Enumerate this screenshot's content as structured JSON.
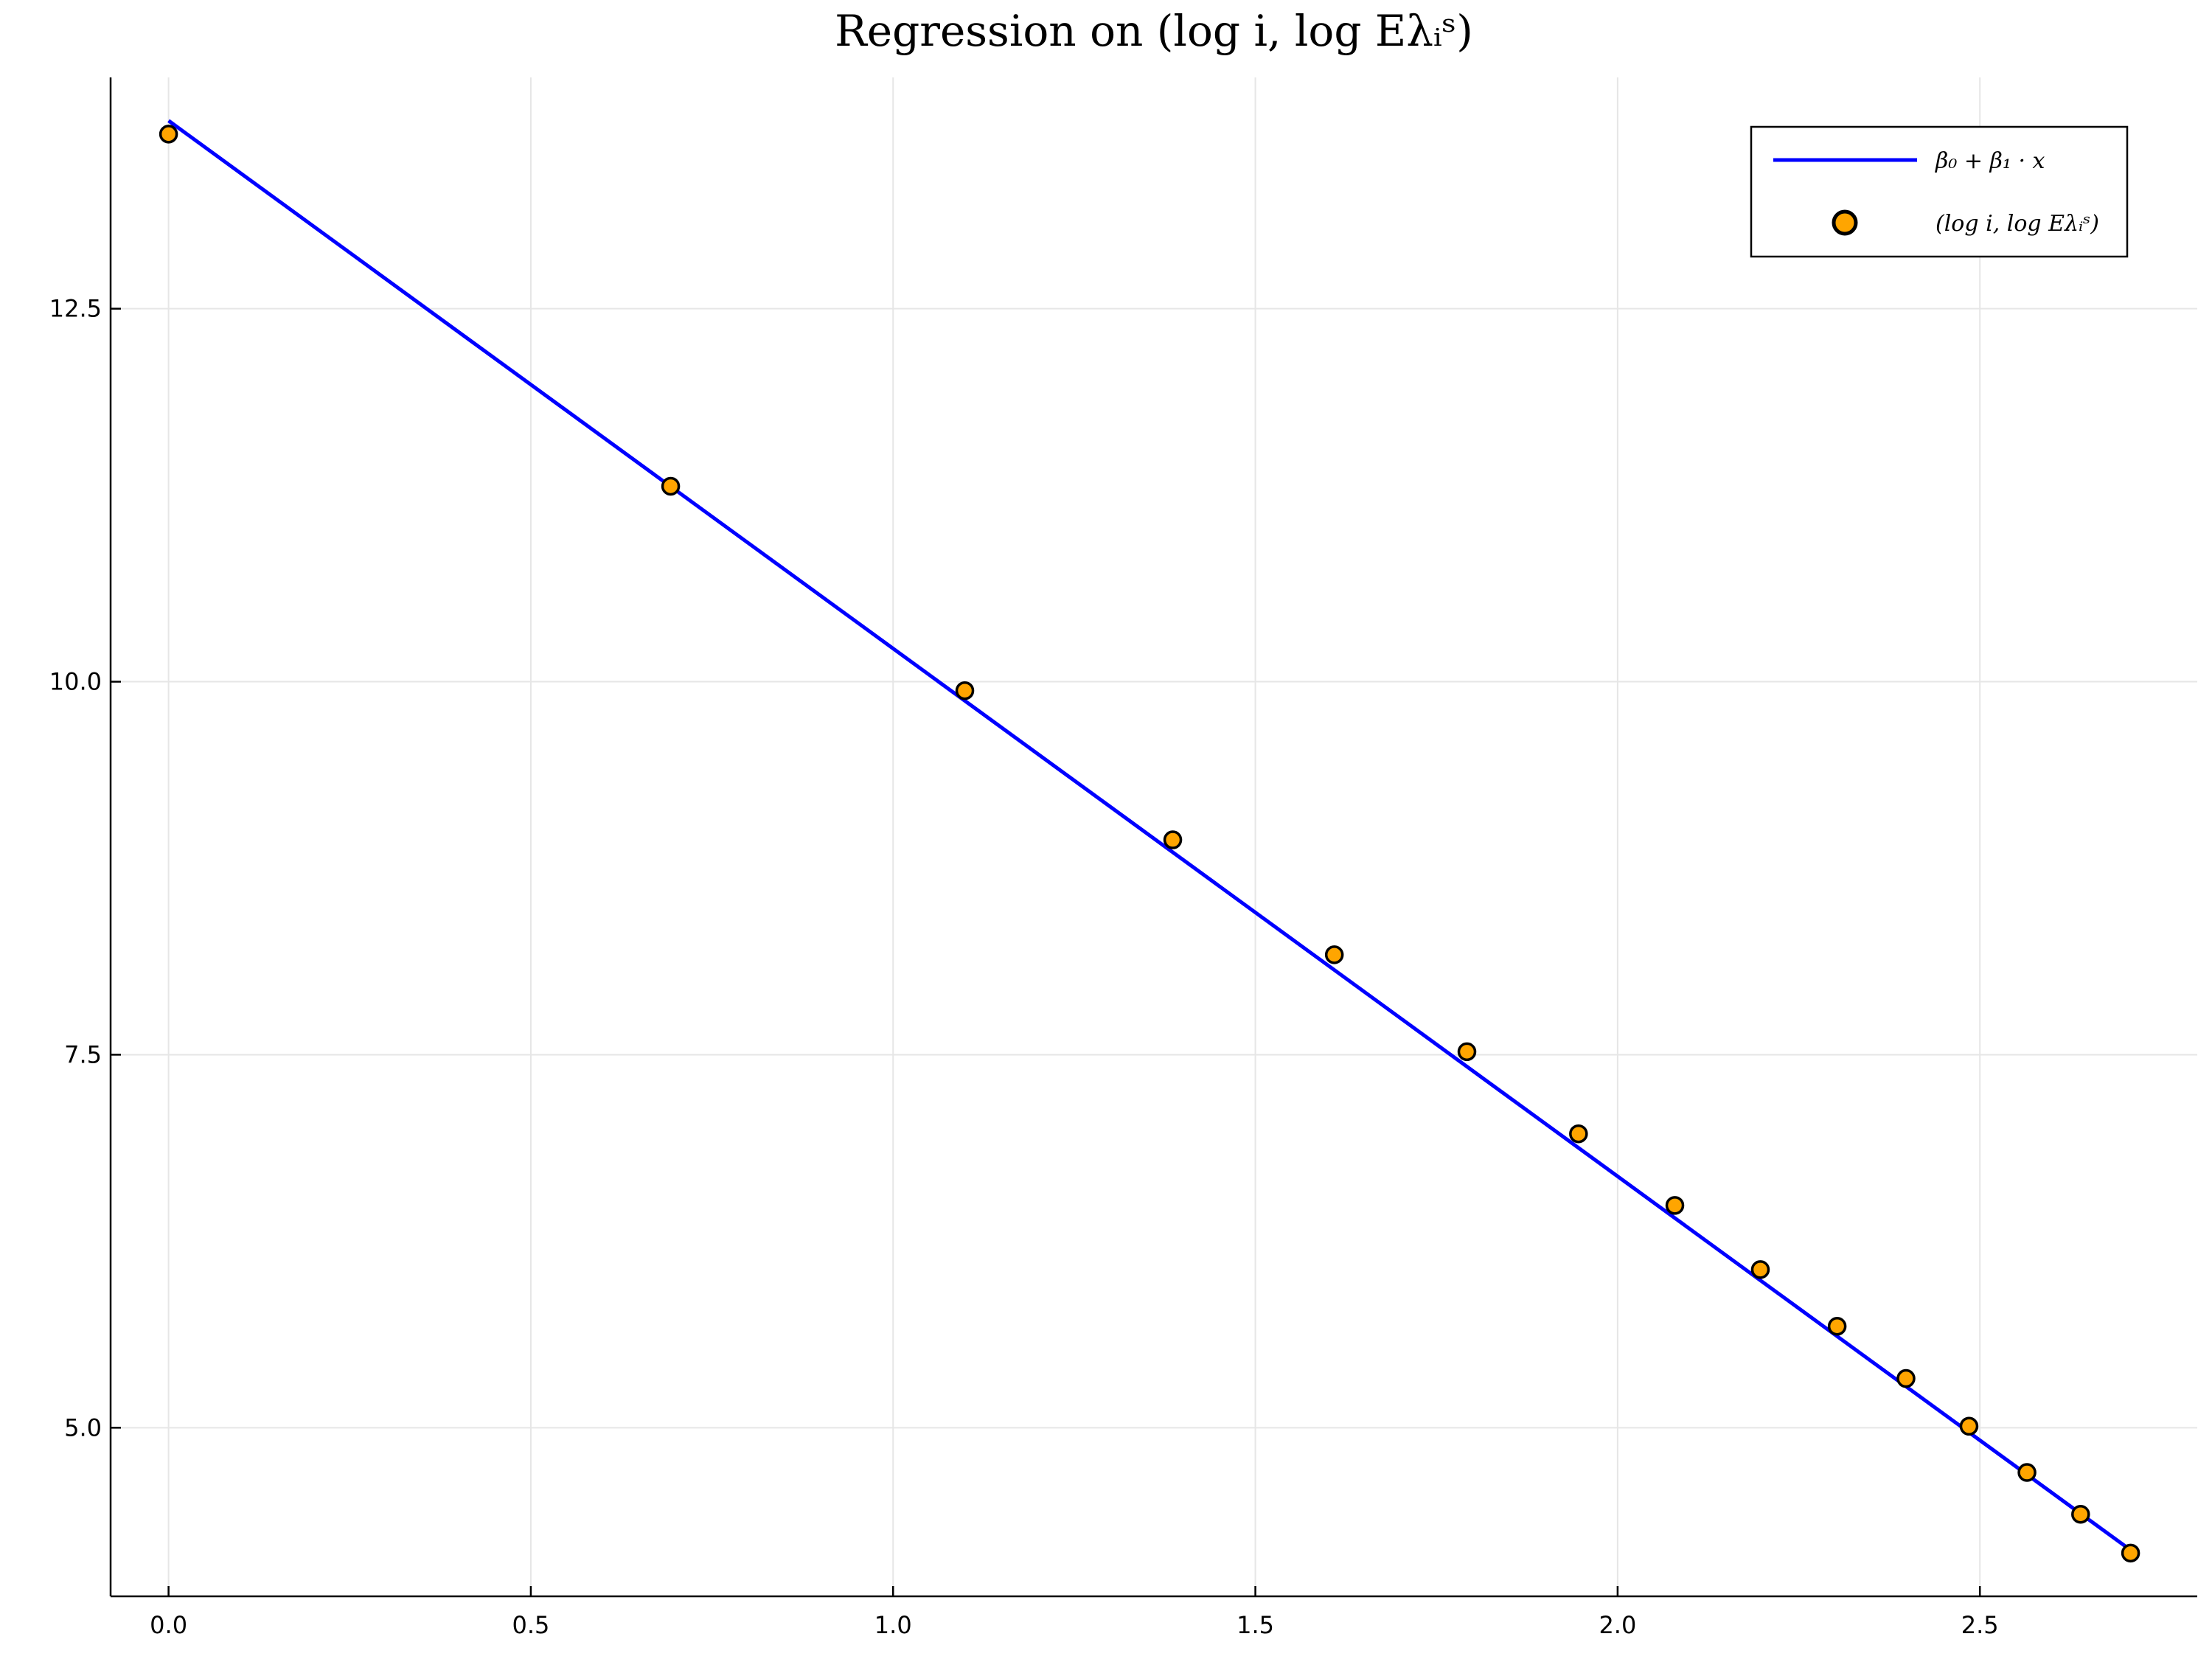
{
  "chart_data": {
    "type": "scatter",
    "title": "Regression on (log i, log Eλᵢˢ)",
    "xlabel": "",
    "ylabel": "",
    "xlim": [
      -0.08,
      2.8
    ],
    "ylim": [
      3.87,
      14.05
    ],
    "x_ticks": [
      0.0,
      0.5,
      1.0,
      1.5,
      2.0,
      2.5
    ],
    "x_tick_labels": [
      "0.0",
      "0.5",
      "1.0",
      "1.5",
      "2.0",
      "2.5"
    ],
    "y_ticks": [
      5.0,
      7.5,
      10.0,
      12.5
    ],
    "y_tick_labels": [
      "5.0",
      "7.5",
      "10.0",
      "12.5"
    ],
    "grid": true,
    "legend_position": "top-right",
    "series": [
      {
        "name": "β₀ + β₁ · x",
        "kind": "line",
        "color": "#0000ff",
        "x": [
          0.0,
          2.708
        ],
        "y": [
          13.76,
          4.18
        ]
      },
      {
        "name": "(log i, log Eλᵢˢ)",
        "kind": "scatter",
        "color": "#ffa500",
        "x": [
          0.0,
          0.693,
          1.099,
          1.386,
          1.609,
          1.792,
          1.946,
          2.079,
          2.197,
          2.303,
          2.398,
          2.485,
          2.565,
          2.639,
          2.708
        ],
        "y": [
          13.67,
          11.31,
          9.94,
          8.94,
          8.17,
          7.52,
          6.97,
          6.49,
          6.06,
          5.68,
          5.33,
          5.01,
          4.7,
          4.42,
          4.16
        ]
      }
    ]
  }
}
